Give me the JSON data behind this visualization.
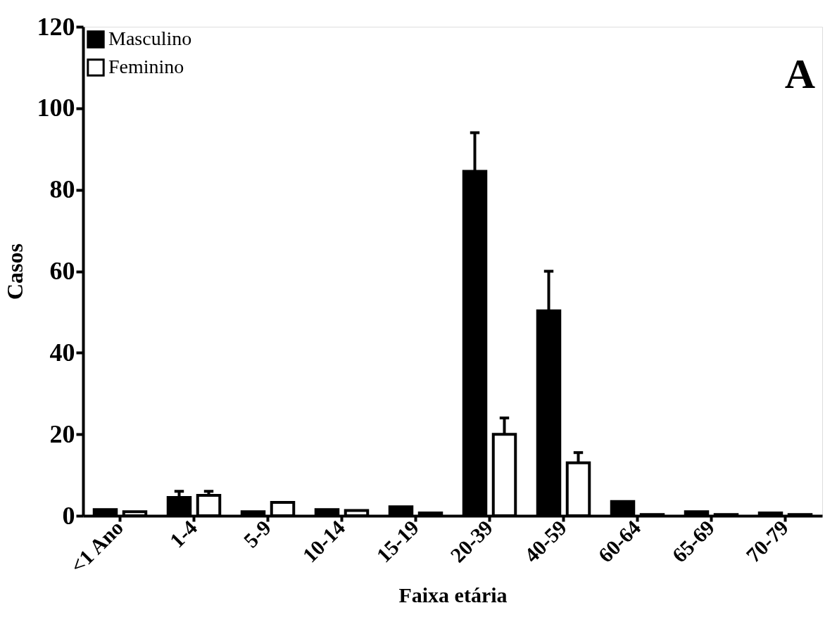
{
  "chart_data": {
    "type": "bar",
    "xlabel": "Faixa etária",
    "ylabel": "Casos",
    "annotations": [
      "A"
    ],
    "categories": [
      "<1 Ano",
      "1-4",
      "5-9",
      "10-14",
      "15-19",
      "20-39",
      "40-59",
      "60-64",
      "65-69",
      "70-79"
    ],
    "series": [
      {
        "name": "Masculino",
        "color": "#000000",
        "values": [
          1.5,
          4.5,
          1,
          1.5,
          2.2,
          84.5,
          50.3,
          3.5,
          1,
          0.7
        ],
        "errors": [
          null,
          [
            4.5,
            6
          ],
          null,
          null,
          null,
          [
            84.5,
            94
          ],
          [
            50.3,
            60
          ],
          null,
          null,
          null
        ]
      },
      {
        "name": "Feminino",
        "color": "#ffffff",
        "values": [
          1,
          5,
          3.3,
          1.3,
          0.7,
          20,
          13,
          0.3,
          0.3,
          0.3
        ],
        "errors": [
          null,
          [
            5,
            6
          ],
          null,
          null,
          null,
          [
            20,
            24
          ],
          [
            13,
            15.5
          ],
          null,
          null,
          null
        ]
      }
    ],
    "ylim": [
      0,
      120
    ],
    "yticks": [
      0,
      20,
      40,
      60,
      80,
      100,
      120
    ],
    "grid": false,
    "legend": "top left"
  }
}
